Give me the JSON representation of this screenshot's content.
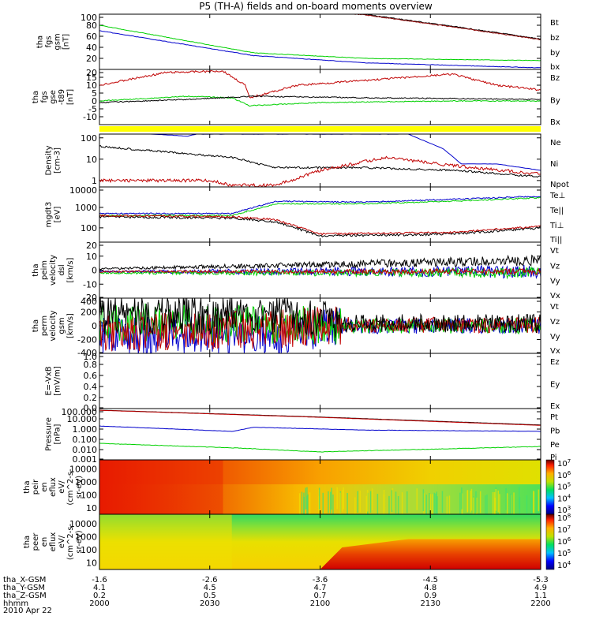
{
  "title": "P5 (TH-A) fields and on-board moments overview",
  "date": "2010 Apr 22",
  "colors": {
    "black": "#000000",
    "red": "#c00000",
    "green": "#00d000",
    "blue": "#0000cc",
    "yellow": "#ffff00",
    "darkred": "#8b0000"
  },
  "footer": {
    "rows": [
      {
        "label": "tha_X-GSM",
        "values": [
          "-1.6",
          "-2.6",
          "-3.6",
          "-4.5",
          "-5.3"
        ]
      },
      {
        "label": "tha_Y-GSM",
        "values": [
          "4.1",
          "4.5",
          "4.7",
          "4.8",
          "4.9"
        ]
      },
      {
        "label": "tha_Z-GSM",
        "values": [
          "0.2",
          "0.5",
          "0.7",
          "0.9",
          "1.1"
        ]
      },
      {
        "label": "hhmm",
        "values": [
          "2000",
          "2030",
          "2100",
          "2130",
          "2200"
        ]
      }
    ]
  },
  "chart_data": [
    {
      "type": "line",
      "ylabel": [
        "tha",
        "fgs",
        "gsm",
        "[nT]"
      ],
      "ylim": [
        0,
        100
      ],
      "yticks": [
        "20",
        "40",
        "60",
        "80",
        "100"
      ],
      "series": [
        {
          "name": "Bt",
          "color": "#000000"
        },
        {
          "name": "bz",
          "color": "#c00000"
        },
        {
          "name": "by",
          "color": "#00d000"
        },
        {
          "name": "bx",
          "color": "#0000cc"
        }
      ]
    },
    {
      "type": "line",
      "ylabel": [
        "tha",
        "fgs",
        "gse",
        "-t89",
        "[nT]"
      ],
      "ylim": [
        -15,
        20
      ],
      "yticks": [
        "-10",
        "-5",
        "0",
        "5",
        "10",
        "15",
        "20"
      ],
      "series": [
        {
          "name": "Bz",
          "color": "#c00000"
        },
        {
          "name": "By",
          "color": "#00d000"
        },
        {
          "name": "Bx",
          "color": "#000000"
        }
      ]
    },
    {
      "type": "line",
      "ylabel": [
        "Density",
        "[cm-3]"
      ],
      "ylim": [
        0.5,
        150
      ],
      "yticks": [
        "1",
        "10",
        "100"
      ],
      "log": true,
      "series": [
        {
          "name": "Ne",
          "color": "#c00000"
        },
        {
          "name": "Ni",
          "color": "#000000"
        },
        {
          "name": "Npot",
          "color": "#0000cc"
        }
      ]
    },
    {
      "type": "line",
      "ylabel": [
        "mgdt3",
        "[eV]"
      ],
      "ylim": [
        20,
        10000
      ],
      "yticks": [
        "100",
        "1000",
        "10000"
      ],
      "log": true,
      "series": [
        {
          "name": "Te⊥",
          "color": "#c00000"
        },
        {
          "name": "Te||",
          "color": "#000000"
        },
        {
          "name": "Ti⊥",
          "color": "#c00000"
        },
        {
          "name": "Ti||",
          "color": "#00d000"
        }
      ]
    },
    {
      "type": "line",
      "ylabel": [
        "tha",
        "peim",
        "velocity",
        "dsl",
        "[km/s]"
      ],
      "ylim": [
        -20,
        20
      ],
      "yticks": [
        "-20",
        "-10",
        "0",
        "10",
        "20"
      ],
      "series": [
        {
          "name": "Vt",
          "color": "#000000"
        },
        {
          "name": "Vz",
          "color": "#c00000"
        },
        {
          "name": "Vy",
          "color": "#00d000"
        },
        {
          "name": "Vx",
          "color": "#0000cc"
        }
      ]
    },
    {
      "type": "line",
      "ylabel": [
        "tha",
        "perm",
        "velocity",
        "gsm",
        "[km/s]"
      ],
      "ylim": [
        -400,
        400
      ],
      "yticks": [
        "-400",
        "-200",
        "0",
        "200",
        "400"
      ],
      "series": [
        {
          "name": "Vt",
          "color": "#000000"
        },
        {
          "name": "Vz",
          "color": "#c00000"
        },
        {
          "name": "Vy",
          "color": "#00d000"
        },
        {
          "name": "Vx",
          "color": "#0000cc"
        }
      ]
    },
    {
      "type": "line",
      "ylabel": [
        "E=-VxB",
        "[mV/m]"
      ],
      "ylim": [
        0,
        1
      ],
      "yticks": [
        "0.0",
        "0.2",
        "0.4",
        "0.6",
        "0.8",
        "1.0"
      ],
      "series": [
        {
          "name": "Ez",
          "color": "#c00000"
        },
        {
          "name": "Ey",
          "color": "#00d000"
        },
        {
          "name": "Ex",
          "color": "#0000cc"
        }
      ]
    },
    {
      "type": "line",
      "ylabel": [
        "Pressure",
        "[nPa]"
      ],
      "ylim": [
        0.001,
        100
      ],
      "yticks": [
        "0.001",
        "0.010",
        "0.100",
        "1.000",
        "10.000",
        "100.000"
      ],
      "log": true,
      "series": [
        {
          "name": "Pt",
          "color": "#000000"
        },
        {
          "name": "Pb",
          "color": "#c00000"
        },
        {
          "name": "Pe",
          "color": "#00d000"
        },
        {
          "name": "Pi",
          "color": "#0000cc"
        }
      ]
    },
    {
      "type": "heatmap",
      "ylabel": [
        "tha",
        "peir",
        "en",
        "eflux",
        "eV/",
        "(cm^2-s-",
        "sr-eV)"
      ],
      "yticks": [
        "10",
        "100",
        "1000",
        "10000"
      ],
      "colorbar": {
        "ticks": [
          "10^3",
          "10^4",
          "10^5",
          "10^6",
          "10^7"
        ]
      }
    },
    {
      "type": "heatmap",
      "ylabel": [
        "tha",
        "peer",
        "en",
        "eflux",
        "eV/",
        "(cm^2-s-",
        "sr-eV)"
      ],
      "yticks": [
        "10",
        "100",
        "1000",
        "10000"
      ],
      "colorbar": {
        "ticks": [
          "10^4",
          "10^5",
          "10^6",
          "10^7",
          "10^8"
        ]
      }
    }
  ],
  "x_axis": {
    "minutes": [
      0,
      30,
      60,
      90,
      120
    ],
    "range": [
      0,
      120
    ]
  }
}
